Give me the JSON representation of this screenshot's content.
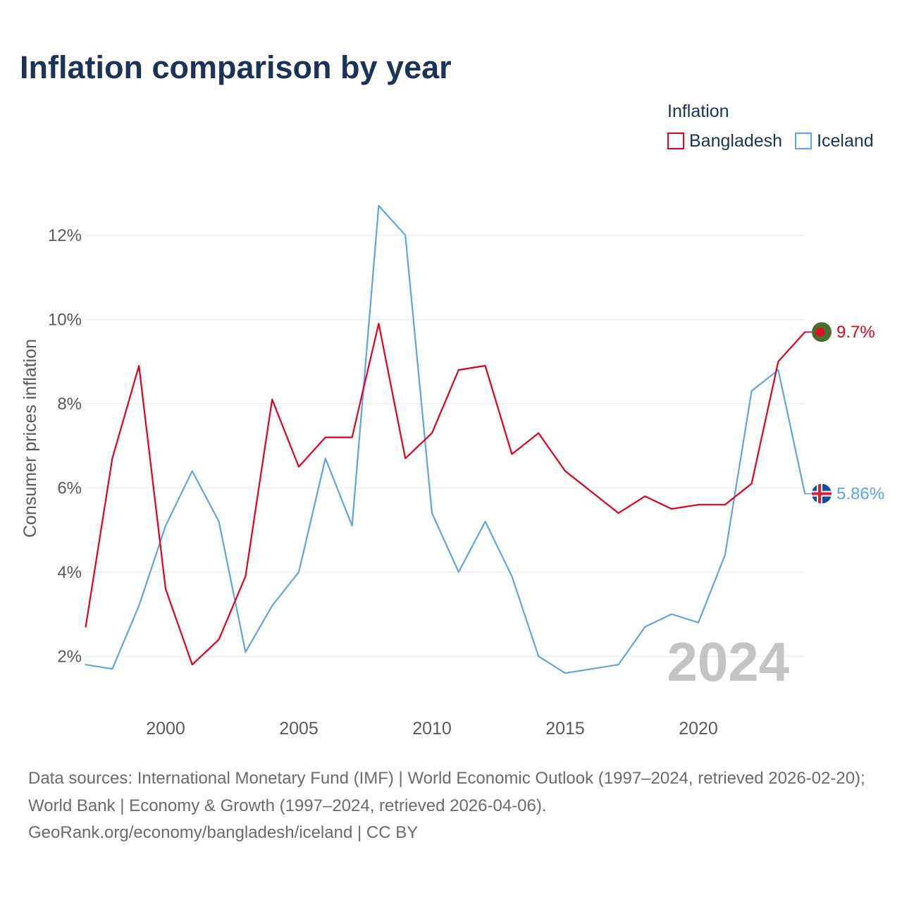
{
  "chart_data": {
    "type": "line",
    "title": "Inflation comparison by year",
    "xlabel": "",
    "ylabel": "Consumer prices inflation",
    "legend_title": "Inflation",
    "legend_position": "top-right",
    "grid": true,
    "x": [
      1997,
      1998,
      1999,
      2000,
      2001,
      2002,
      2003,
      2004,
      2005,
      2006,
      2007,
      2008,
      2009,
      2010,
      2011,
      2012,
      2013,
      2014,
      2015,
      2016,
      2017,
      2018,
      2019,
      2020,
      2021,
      2022,
      2023,
      2024
    ],
    "xlim": [
      1997,
      2024
    ],
    "ylim": [
      0.8,
      13
    ],
    "xticks": [
      2000,
      2005,
      2010,
      2015,
      2020
    ],
    "xtick_labels": [
      "2000",
      "2005",
      "2010",
      "2015",
      "2020"
    ],
    "yticks": [
      2,
      4,
      6,
      8,
      10,
      12
    ],
    "ytick_labels": [
      "2%",
      "4%",
      "6%",
      "8%",
      "10%",
      "12%"
    ],
    "year_label": "2024",
    "series": [
      {
        "name": "Bangladesh",
        "color": "#e3001b",
        "values": [
          2.7,
          6.7,
          8.9,
          3.6,
          1.8,
          2.4,
          3.9,
          8.1,
          6.5,
          7.2,
          7.2,
          9.9,
          6.7,
          7.3,
          8.8,
          8.9,
          6.8,
          7.3,
          6.4,
          5.9,
          5.4,
          5.8,
          5.5,
          5.6,
          5.6,
          6.1,
          9.0,
          9.7
        ],
        "end_label": "9.7%",
        "flag_icon": "bangladesh-flag-icon"
      },
      {
        "name": "Iceland",
        "color": "#5ea5e4",
        "values": [
          1.8,
          1.7,
          3.2,
          5.1,
          6.4,
          5.2,
          2.1,
          3.2,
          4.0,
          6.7,
          5.1,
          12.7,
          12.0,
          5.4,
          4.0,
          5.2,
          3.9,
          2.0,
          1.6,
          1.7,
          1.8,
          2.7,
          3.0,
          2.8,
          4.4,
          8.3,
          8.8,
          5.86
        ],
        "end_label": "5.86%",
        "flag_icon": "iceland-flag-icon"
      }
    ]
  },
  "footer": {
    "sources": "Data sources: International Monetary Fund (IMF) | World Economic Outlook (1997–2024, retrieved 2026-02-20); World Bank | Economy & Growth (1997–2024, retrieved 2026-04-06).",
    "attribution": "GeoRank.org/economy/bangladesh/iceland | CC BY"
  }
}
